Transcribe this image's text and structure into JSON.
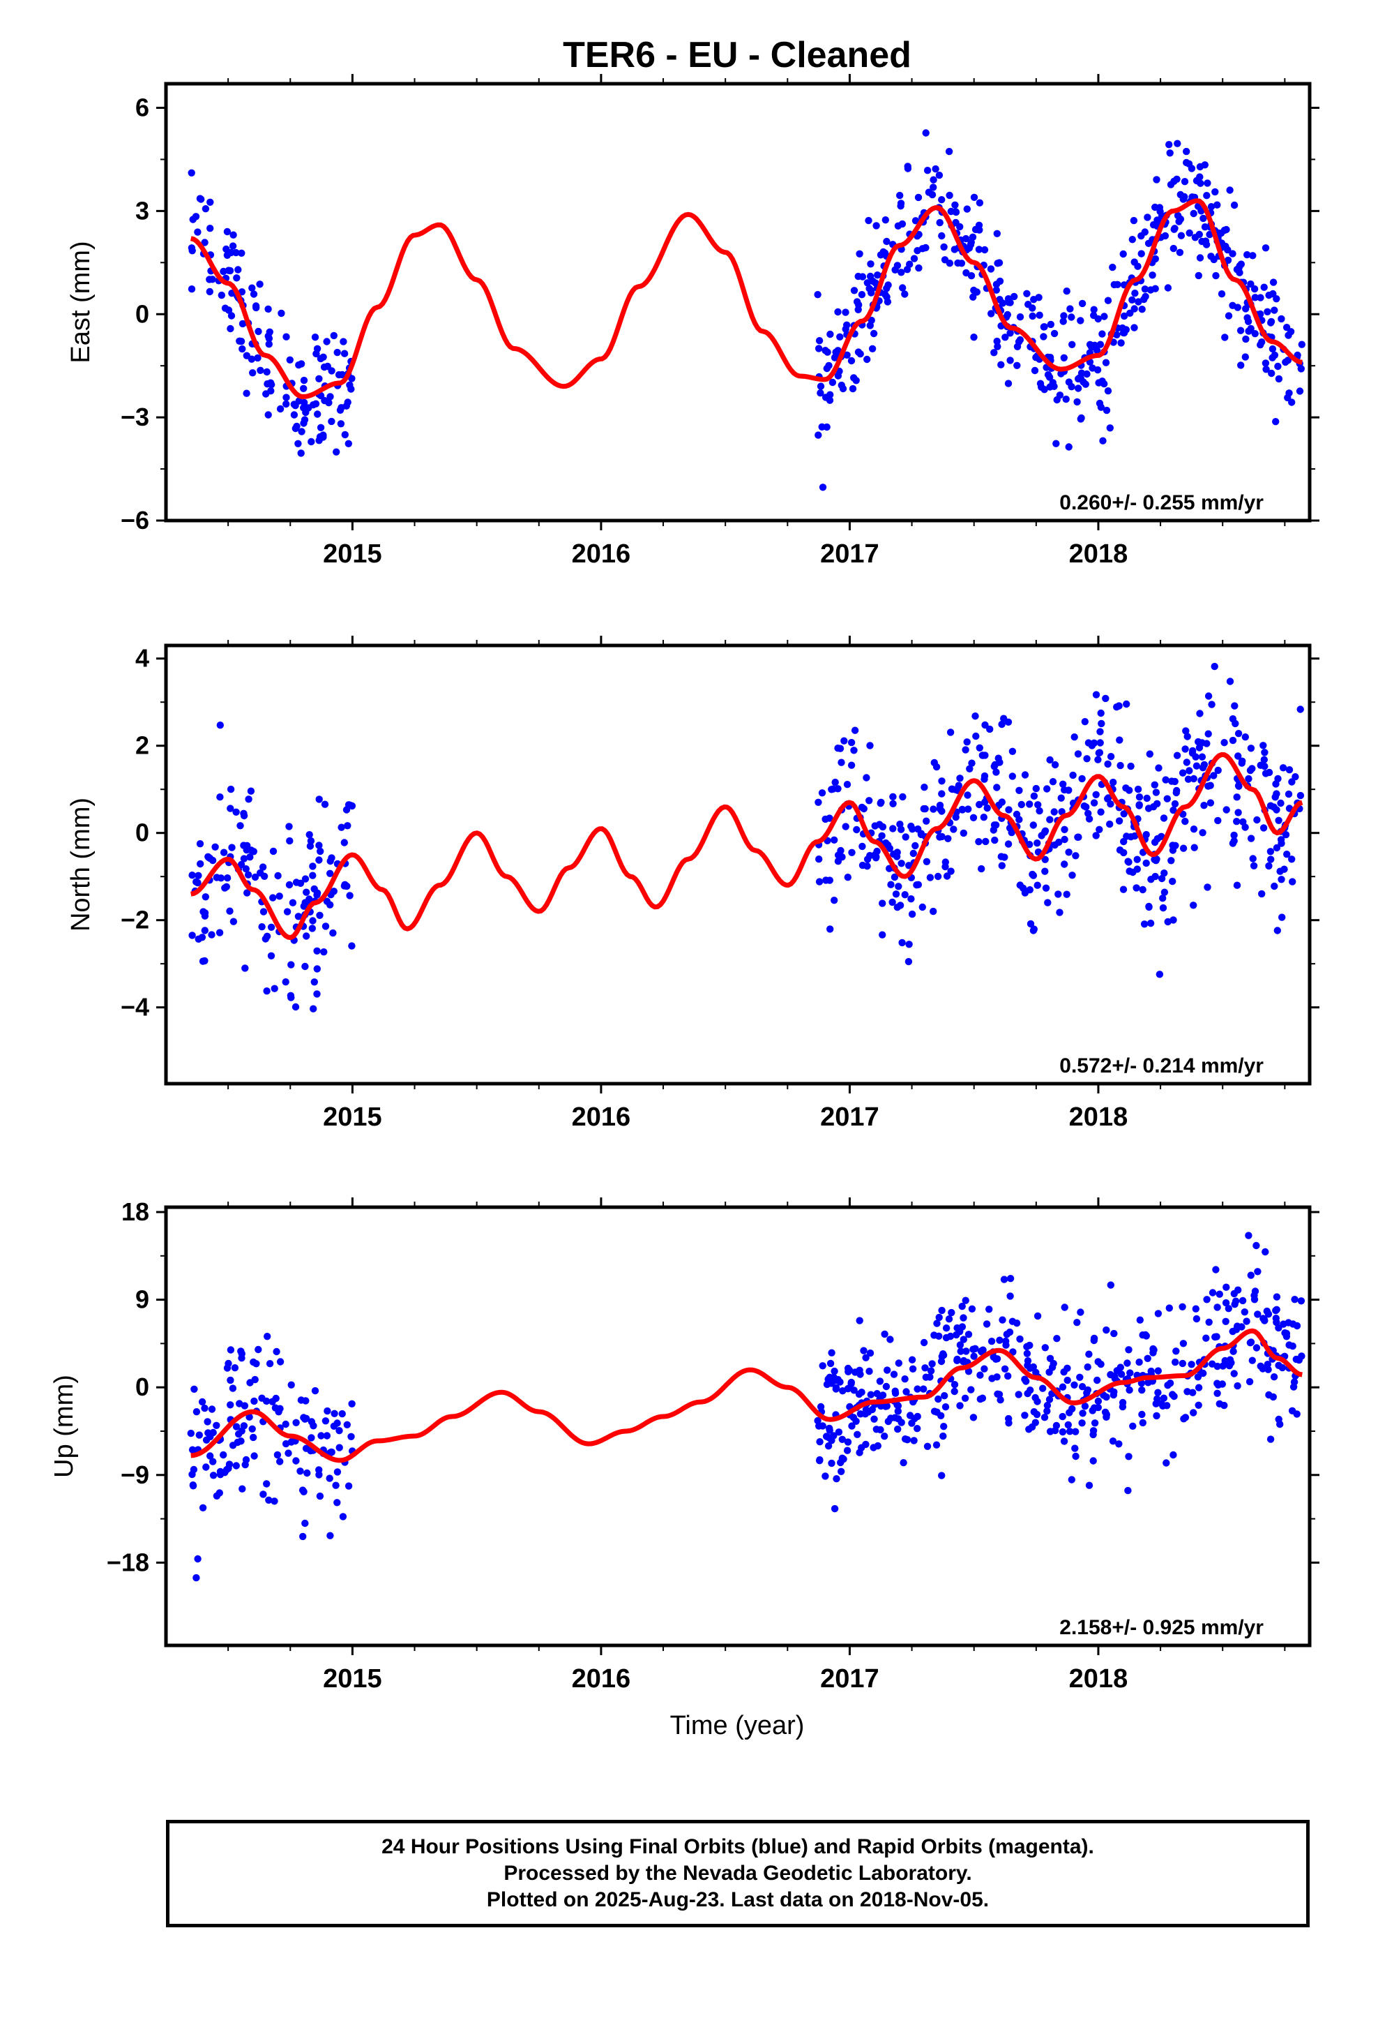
{
  "title": "TER6  - EU - Cleaned",
  "footer": {
    "line1": "24 Hour Positions Using Final Orbits (blue) and Rapid Orbits (magenta).",
    "line2": "Processed by the Nevada Geodetic Laboratory.",
    "line3": "Plotted on 2025-Aug-23. Last data on 2018-Nov-05."
  },
  "colors": {
    "points": "#0000ff",
    "model": "#ff0000",
    "axis": "#000000"
  },
  "chart_data": [
    {
      "type": "scatter",
      "component": "east",
      "ylabel": "East (mm)",
      "xlabel": "",
      "xlim": [
        2014.25,
        2018.85
      ],
      "ylim": [
        -6,
        6.7
      ],
      "yticks": [
        -6,
        -3,
        0,
        3,
        6
      ],
      "xticks": [
        2015,
        2016,
        2017,
        2018
      ],
      "grid": false,
      "rate_label": "0.260+/- 0.255 mm/yr",
      "model": {
        "x": [
          2014.35,
          2014.5,
          2014.65,
          2014.8,
          2014.95,
          2015.1,
          2015.25,
          2015.35,
          2015.5,
          2015.65,
          2015.85,
          2016.0,
          2016.15,
          2016.35,
          2016.5,
          2016.65,
          2016.8,
          2016.9,
          2017.05,
          2017.2,
          2017.35,
          2017.5,
          2017.65,
          2017.85,
          2018.0,
          2018.15,
          2018.3,
          2018.4,
          2018.55,
          2018.7,
          2018.82
        ],
        "y": [
          2.2,
          0.9,
          -1.2,
          -2.4,
          -2.0,
          0.2,
          2.3,
          2.6,
          1.0,
          -1.0,
          -2.1,
          -1.3,
          0.8,
          2.9,
          1.8,
          -0.5,
          -1.8,
          -1.9,
          -0.2,
          2.0,
          3.1,
          1.5,
          -0.4,
          -1.6,
          -1.2,
          1.0,
          3.0,
          3.3,
          1.0,
          -0.8,
          -1.4
        ]
      },
      "segments": [
        {
          "start": 2014.35,
          "end": 2015.0,
          "n": 150,
          "model_start": 0
        },
        {
          "start": 2016.87,
          "end": 2018.82,
          "n": 520,
          "model_start": 17
        }
      ],
      "scatter_sd": 0.9
    },
    {
      "type": "scatter",
      "component": "north",
      "ylabel": "North (mm)",
      "xlabel": "",
      "xlim": [
        2014.25,
        2018.85
      ],
      "ylim": [
        -5.75,
        4.3
      ],
      "yticks": [
        -4,
        -2,
        0,
        2,
        4
      ],
      "xticks": [
        2015,
        2016,
        2017,
        2018
      ],
      "grid": false,
      "rate_label": "0.572+/- 0.214 mm/yr",
      "model": {
        "x": [
          2014.35,
          2014.5,
          2014.6,
          2014.75,
          2014.85,
          2015.0,
          2015.12,
          2015.22,
          2015.35,
          2015.5,
          2015.62,
          2015.75,
          2015.87,
          2016.0,
          2016.12,
          2016.22,
          2016.35,
          2016.5,
          2016.62,
          2016.75,
          2016.87,
          2017.0,
          2017.1,
          2017.22,
          2017.35,
          2017.5,
          2017.62,
          2017.75,
          2017.87,
          2018.0,
          2018.1,
          2018.22,
          2018.35,
          2018.5,
          2018.62,
          2018.72,
          2018.82
        ],
        "y": [
          -1.4,
          -0.6,
          -1.3,
          -2.4,
          -1.6,
          -0.5,
          -1.3,
          -2.2,
          -1.2,
          0.0,
          -1.0,
          -1.8,
          -0.8,
          0.1,
          -1.0,
          -1.7,
          -0.6,
          0.6,
          -0.4,
          -1.2,
          -0.2,
          0.7,
          -0.2,
          -1.0,
          0.1,
          1.2,
          0.4,
          -0.6,
          0.4,
          1.3,
          0.6,
          -0.5,
          0.6,
          1.8,
          1.0,
          0.0,
          0.7
        ]
      },
      "segments": [
        {
          "start": 2014.35,
          "end": 2015.0,
          "n": 150,
          "model_start": 0
        },
        {
          "start": 2016.87,
          "end": 2018.82,
          "n": 520,
          "model_start": 20
        }
      ],
      "scatter_sd": 1.0
    },
    {
      "type": "scatter",
      "component": "up",
      "ylabel": "Up (mm)",
      "xlabel": "Time (year)",
      "xlim": [
        2014.25,
        2018.85
      ],
      "ylim": [
        -26.5,
        18.5
      ],
      "yticks": [
        -18,
        -9,
        0,
        9,
        18
      ],
      "xticks": [
        2015,
        2016,
        2017,
        2018
      ],
      "grid": false,
      "rate_label": "2.158+/- 0.925 mm/yr",
      "model": {
        "x": [
          2014.35,
          2014.6,
          2014.75,
          2014.95,
          2015.1,
          2015.25,
          2015.4,
          2015.6,
          2015.75,
          2015.95,
          2016.1,
          2016.25,
          2016.4,
          2016.6,
          2016.75,
          2016.92,
          2017.1,
          2017.3,
          2017.45,
          2017.6,
          2017.75,
          2017.9,
          2018.1,
          2018.2,
          2018.35,
          2018.5,
          2018.62,
          2018.72,
          2018.82
        ],
        "y": [
          -7.0,
          -2.5,
          -5.0,
          -7.5,
          -5.5,
          -5.0,
          -3.0,
          -0.5,
          -2.5,
          -5.8,
          -4.5,
          -3.0,
          -1.5,
          1.8,
          0.0,
          -3.3,
          -1.5,
          -1.0,
          2.0,
          3.8,
          1.0,
          -1.6,
          0.5,
          1.0,
          1.2,
          4.0,
          5.8,
          3.0,
          1.3
        ]
      },
      "segments": [
        {
          "start": 2014.35,
          "end": 2015.0,
          "n": 150,
          "model_start": 0
        },
        {
          "start": 2016.87,
          "end": 2018.82,
          "n": 520,
          "model_start": 15
        }
      ],
      "scatter_sd": 3.8
    }
  ]
}
